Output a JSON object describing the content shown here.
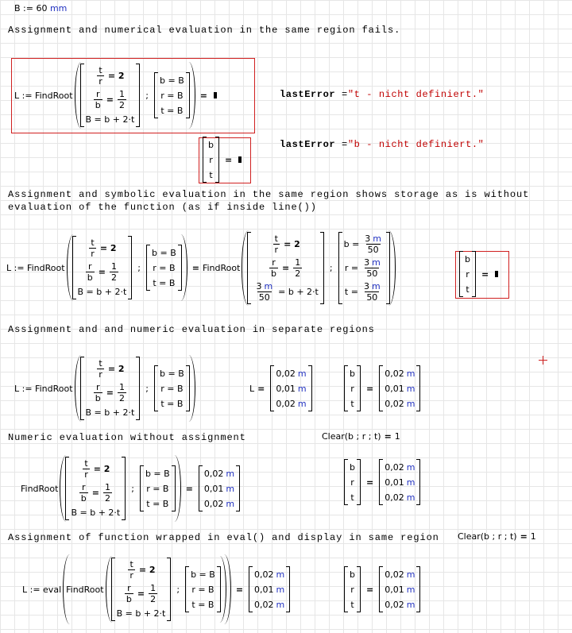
{
  "definition": {
    "text": "B := 60",
    "unit": "mm"
  },
  "system": {
    "eq1": {
      "num": "t",
      "den": "r",
      "rhs": "= 2"
    },
    "eq2": {
      "num": "r",
      "den": "b",
      "op": "=",
      "rhs_num": "1",
      "rhs_den": "2"
    },
    "eq3": "B = b + 2·t",
    "sep": ";",
    "guess": [
      "b = B",
      "r = B",
      "t = B"
    ]
  },
  "symbolic": {
    "eq3_num": "3",
    "unit": "m",
    "eq3_den": "50",
    "eq3_rhs": "= b + 2·t",
    "guess_lhs": [
      "b =",
      "r =",
      "t ="
    ],
    "num": "3",
    "den": "50"
  },
  "vars": [
    "b",
    "r",
    "t"
  ],
  "results": {
    "values": [
      "0,02",
      "0,01",
      "0,02"
    ],
    "unit": "m"
  },
  "sections": [
    {
      "heading": "Assignment and numerical evaluation in the same region fails.",
      "lhs": "L := FindRoot",
      "equals": "=",
      "errors": [
        {
          "name": "lastError",
          "value": "\"t - nicht definiert.\""
        },
        {
          "name": "lastError",
          "value": "\"b - nicht definiert.\""
        }
      ]
    },
    {
      "heading": "Assignment and symbolic evaluation in the same region shows storage as is without evaluation of the function (as if inside line())",
      "lhs": "L := FindRoot",
      "result_fn": "FindRoot",
      "equals": "="
    },
    {
      "heading": "Assignment and and numeric evaluation in separate regions",
      "lhs": "L := FindRoot",
      "display": "L",
      "equals": "="
    },
    {
      "heading": "Numeric evaluation without assignment",
      "lhs": "FindRoot",
      "equals": "=",
      "clear": "Clear(b ; r ; t)",
      "clear_result": "1"
    },
    {
      "heading": "Assignment of function wrapped in eval() and display in same region",
      "lhs": "L := eval",
      "fn": "FindRoot",
      "equals": "=",
      "clear": "Clear(b ; r ; t)",
      "clear_result": "1"
    }
  ]
}
